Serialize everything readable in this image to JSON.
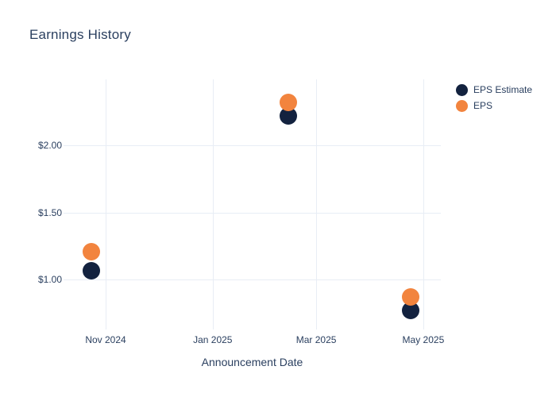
{
  "chart_data": {
    "type": "scatter",
    "title": "Earnings History",
    "xlabel": "Announcement Date",
    "ylabel": "",
    "grid": true,
    "legend_position": "top-right-outside",
    "xlim": [
      "2024-10-08",
      "2025-05-11"
    ],
    "ylim": [
      0.63,
      2.49
    ],
    "x_ticks": [
      {
        "date": "2024-11-01",
        "label": "Nov 2024"
      },
      {
        "date": "2025-01-01",
        "label": "Jan 2025"
      },
      {
        "date": "2025-03-01",
        "label": "Mar 2025"
      },
      {
        "date": "2025-05-01",
        "label": "May 2025"
      }
    ],
    "y_ticks": [
      {
        "value": 1.0,
        "label": "$1.00"
      },
      {
        "value": 1.5,
        "label": "$1.50"
      },
      {
        "value": 2.0,
        "label": "$2.00"
      }
    ],
    "series": [
      {
        "name": "EPS Estimate",
        "color": "#13223f",
        "points": [
          {
            "x": "2024-10-24",
            "y": 1.07
          },
          {
            "x": "2025-02-13",
            "y": 2.22
          },
          {
            "x": "2025-04-24",
            "y": 0.77
          }
        ]
      },
      {
        "name": "EPS",
        "color": "#f2843e",
        "points": [
          {
            "x": "2024-10-24",
            "y": 1.21
          },
          {
            "x": "2025-02-13",
            "y": 2.32
          },
          {
            "x": "2025-04-24",
            "y": 0.87
          }
        ]
      }
    ]
  },
  "colors": {
    "background": "#ffffff",
    "grid": "#e8edf5",
    "text": "#2a3f5f",
    "eps_estimate": "#13223f",
    "eps": "#f2843e"
  }
}
